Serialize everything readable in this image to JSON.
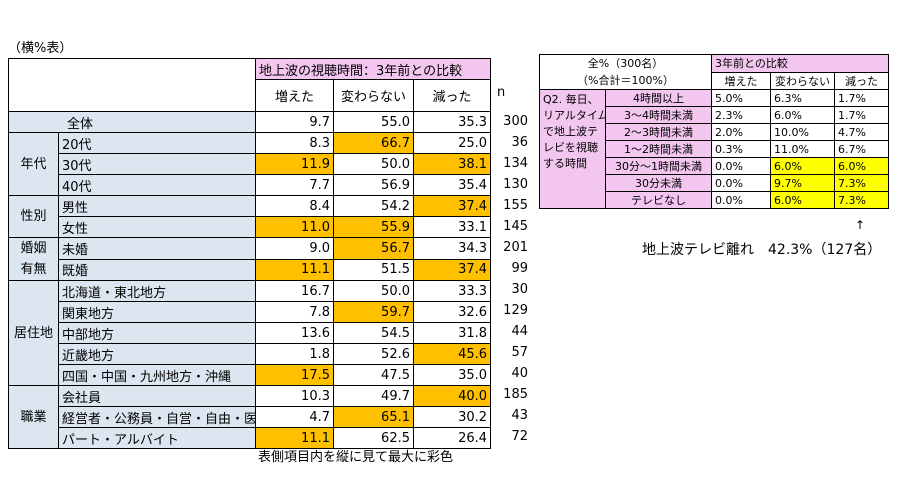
{
  "unit_note": "（横%表）",
  "main_table": {
    "title": "地上波の視聴時間：3年前との比較",
    "columns": [
      "増えた",
      "変わらない",
      "減った"
    ],
    "n_label": "n",
    "rows": [
      {
        "group": "",
        "label": "全体",
        "values": [
          "9.7",
          "55.0",
          "35.3"
        ],
        "n": "300",
        "hl": [
          false,
          false,
          false
        ]
      },
      {
        "group": "年代",
        "label": "20代",
        "values": [
          "8.3",
          "66.7",
          "25.0"
        ],
        "n": "36",
        "hl": [
          false,
          true,
          false
        ]
      },
      {
        "group": "年代",
        "label": "30代",
        "values": [
          "11.9",
          "50.0",
          "38.1"
        ],
        "n": "134",
        "hl": [
          true,
          false,
          true
        ]
      },
      {
        "group": "年代",
        "label": "40代",
        "values": [
          "7.7",
          "56.9",
          "35.4"
        ],
        "n": "130",
        "hl": [
          false,
          false,
          false
        ]
      },
      {
        "group": "性別",
        "label": "男性",
        "values": [
          "8.4",
          "54.2",
          "37.4"
        ],
        "n": "155",
        "hl": [
          false,
          false,
          true
        ]
      },
      {
        "group": "性別",
        "label": "女性",
        "values": [
          "11.0",
          "55.9",
          "33.1"
        ],
        "n": "145",
        "hl": [
          true,
          true,
          false
        ]
      },
      {
        "group": "婚姻有無",
        "label": "未婚",
        "values": [
          "9.0",
          "56.7",
          "34.3"
        ],
        "n": "201",
        "hl": [
          false,
          true,
          false
        ]
      },
      {
        "group": "婚姻有無",
        "label": "既婚",
        "values": [
          "11.1",
          "51.5",
          "37.4"
        ],
        "n": "99",
        "hl": [
          true,
          false,
          true
        ]
      },
      {
        "group": "居住地",
        "label": "北海道・東北地方",
        "values": [
          "16.7",
          "50.0",
          "33.3"
        ],
        "n": "30",
        "hl": [
          false,
          false,
          false
        ]
      },
      {
        "group": "居住地",
        "label": "関東地方",
        "values": [
          "7.8",
          "59.7",
          "32.6"
        ],
        "n": "129",
        "hl": [
          false,
          true,
          false
        ]
      },
      {
        "group": "居住地",
        "label": "中部地方",
        "values": [
          "13.6",
          "54.5",
          "31.8"
        ],
        "n": "44",
        "hl": [
          false,
          false,
          false
        ]
      },
      {
        "group": "居住地",
        "label": "近畿地方",
        "values": [
          "1.8",
          "52.6",
          "45.6"
        ],
        "n": "57",
        "hl": [
          false,
          false,
          true
        ]
      },
      {
        "group": "居住地",
        "label": "四国・中国・九州地方・沖縄",
        "values": [
          "17.5",
          "47.5",
          "35.0"
        ],
        "n": "40",
        "hl": [
          true,
          false,
          false
        ]
      },
      {
        "group": "職業",
        "label": "会社員",
        "values": [
          "10.3",
          "49.7",
          "40.0"
        ],
        "n": "185",
        "hl": [
          false,
          false,
          true
        ]
      },
      {
        "group": "職業",
        "label": "経営者・公務員・自営・自由・医療",
        "values": [
          "4.7",
          "65.1",
          "30.2"
        ],
        "n": "43",
        "hl": [
          false,
          true,
          false
        ]
      },
      {
        "group": "職業",
        "label": "パート・アルバイト",
        "values": [
          "11.1",
          "62.5",
          "26.4"
        ],
        "n": "72",
        "hl": [
          true,
          false,
          false
        ]
      }
    ],
    "groups": [
      {
        "name": "年代",
        "lines": [
          "年代"
        ],
        "start": 1,
        "span": 3
      },
      {
        "name": "性別",
        "lines": [
          "性別"
        ],
        "start": 4,
        "span": 2
      },
      {
        "name": "婚姻有無",
        "lines": [
          "婚姻",
          "有無"
        ],
        "start": 6,
        "span": 2
      },
      {
        "name": "居住地",
        "lines": [
          "居住地"
        ],
        "start": 8,
        "span": 5
      },
      {
        "name": "職業",
        "lines": [
          "職業"
        ],
        "start": 13,
        "span": 3
      }
    ],
    "footnote": "表側項目内を縦に見て最大に彩色"
  },
  "side_table": {
    "header_left_1": "全%（300名）",
    "header_left_2": "（%合計＝100%）",
    "title": "3年前との比較",
    "columns": [
      "増えた",
      "変わらない",
      "減った"
    ],
    "row_group": "Q2. 毎日、リアルタイムで地上波テレビを視聴する時間",
    "row_group_lines": [
      "Q2. 毎日、",
      "リアルタイム",
      "で地上波テ",
      "レビを視聴",
      "する時間"
    ],
    "rows": [
      {
        "label": "4時間以上",
        "values": [
          "5.0%",
          "6.3%",
          "1.7%"
        ],
        "hl": [
          false,
          false,
          false
        ]
      },
      {
        "label": "3～4時間未満",
        "values": [
          "2.3%",
          "6.0%",
          "1.7%"
        ],
        "hl": [
          false,
          false,
          false
        ]
      },
      {
        "label": "2～3時間未満",
        "values": [
          "2.0%",
          "10.0%",
          "4.7%"
        ],
        "hl": [
          false,
          false,
          false
        ]
      },
      {
        "label": "1～2時間未満",
        "values": [
          "0.3%",
          "11.0%",
          "6.7%"
        ],
        "hl": [
          false,
          false,
          false
        ]
      },
      {
        "label": "30分～1時間未満",
        "values": [
          "0.0%",
          "6.0%",
          "6.0%"
        ],
        "hl": [
          false,
          true,
          true
        ]
      },
      {
        "label": "30分未満",
        "values": [
          "0.0%",
          "9.7%",
          "7.3%"
        ],
        "hl": [
          false,
          true,
          true
        ]
      },
      {
        "label": "テレビなし",
        "values": [
          "0.0%",
          "6.0%",
          "7.3%"
        ],
        "hl": [
          false,
          true,
          true
        ]
      }
    ],
    "arrow": "↑",
    "annotation": "地上波テレビ離れ　42.3%（127名）"
  },
  "colors": {
    "pink": "#f3c6f0",
    "blue": "#dce6f1",
    "orange": "#ffc000",
    "yellow": "#ffff00"
  },
  "chart_data": {
    "type": "table",
    "title": "地上波の視聴時間：3年前との比較",
    "columns": [
      "増えた",
      "変わらない",
      "減った",
      "n"
    ],
    "rows": [
      [
        "全体",
        9.7,
        55.0,
        35.3,
        300
      ],
      [
        "20代",
        8.3,
        66.7,
        25.0,
        36
      ],
      [
        "30代",
        11.9,
        50.0,
        38.1,
        134
      ],
      [
        "40代",
        7.7,
        56.9,
        35.4,
        130
      ],
      [
        "男性",
        8.4,
        54.2,
        37.4,
        155
      ],
      [
        "女性",
        11.0,
        55.9,
        33.1,
        145
      ],
      [
        "未婚",
        9.0,
        56.7,
        34.3,
        201
      ],
      [
        "既婚",
        11.1,
        51.5,
        37.4,
        99
      ],
      [
        "北海道・東北地方",
        16.7,
        50.0,
        33.3,
        30
      ],
      [
        "関東地方",
        7.8,
        59.7,
        32.6,
        129
      ],
      [
        "中部地方",
        13.6,
        54.5,
        31.8,
        44
      ],
      [
        "近畿地方",
        1.8,
        52.6,
        45.6,
        57
      ],
      [
        "四国・中国・九州地方・沖縄",
        17.5,
        47.5,
        35.0,
        40
      ],
      [
        "会社員",
        10.3,
        49.7,
        40.0,
        185
      ],
      [
        "経営者・公務員・自営・自由・医療",
        4.7,
        65.1,
        30.2,
        43
      ],
      [
        "パート・アルバイト",
        11.1,
        62.5,
        26.4,
        72
      ]
    ]
  }
}
